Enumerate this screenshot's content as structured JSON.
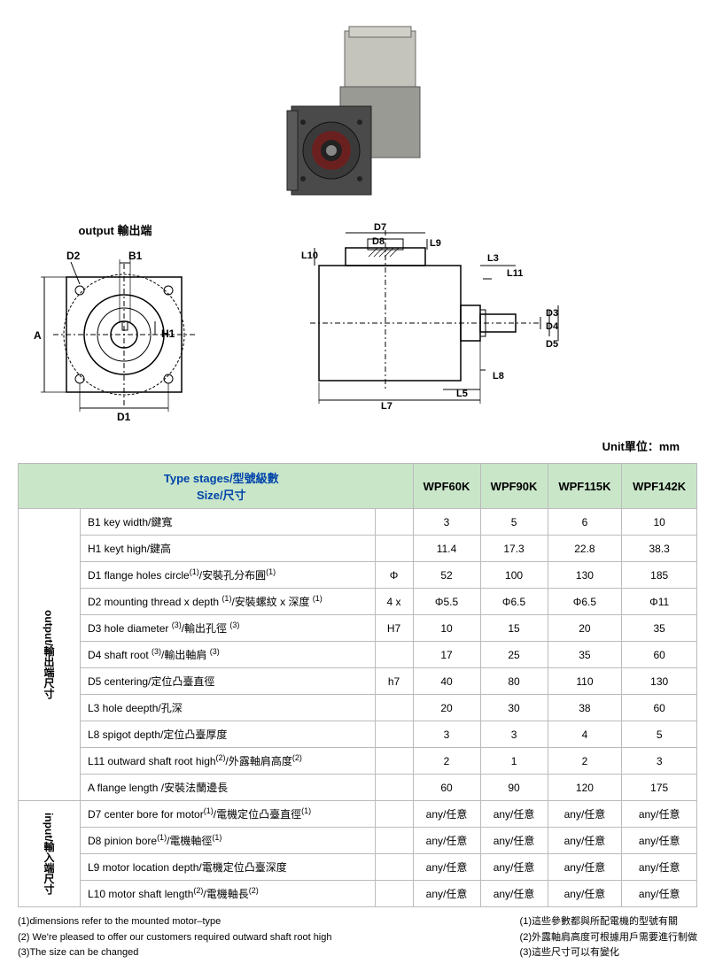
{
  "unit_label": "Unit單位：mm",
  "output_title": "output 輸出端",
  "header": {
    "size_label": "Size/尺寸",
    "type_stages": "Type stages/型號級數",
    "models": [
      "WPF60K",
      "WPF90K",
      "WPF115K",
      "WPF142K"
    ]
  },
  "sections": [
    {
      "vert_label": "output/輸出端尺寸",
      "rows": [
        {
          "label": "B1  key width/鍵寬",
          "tol": "",
          "vals": [
            "3",
            "5",
            "6",
            "10"
          ]
        },
        {
          "label": "H1 keyt high/鍵高",
          "tol": "",
          "vals": [
            "11.4",
            "17.3",
            "22.8",
            "38.3"
          ]
        },
        {
          "label": "D1  flange holes circle<sup>(1)</sup>/安裝孔分布圓<sup>(1)</sup>",
          "tol": "Φ",
          "vals": [
            "52",
            "100",
            "130",
            "185"
          ]
        },
        {
          "label": "D2  mounting thread x depth <sup>(1)</sup>/安裝螺紋 x 深度 <sup>(1)</sup>",
          "tol": "4 x",
          "vals": [
            "Φ5.5",
            "Φ6.5",
            "Φ6.5",
            "Φ11"
          ]
        },
        {
          "label": "D3  hole diameter <sup>(3)</sup>/輸出孔徑 <sup>(3)</sup>",
          "tol": "H7",
          "vals": [
            "10",
            "15",
            "20",
            "35"
          ]
        },
        {
          "label": "D4  shaft root <sup>(3)</sup>/輸出軸肩 <sup>(3)</sup>",
          "tol": "",
          "vals": [
            "17",
            "25",
            "35",
            "60"
          ]
        },
        {
          "label": "D5  centering/定位凸臺直徑",
          "tol": "h7",
          "vals": [
            "40",
            "80",
            "110",
            "130"
          ]
        },
        {
          "label": "L3 hole deepth/孔深",
          "tol": "",
          "vals": [
            "20",
            "30",
            "38",
            "60"
          ]
        },
        {
          "label": "L8   spigot depth/定位凸臺厚度",
          "tol": "",
          "vals": [
            "3",
            "3",
            "4",
            "5"
          ]
        },
        {
          "label": "L11 outward shaft root high<sup>(2)</sup>/外露軸肩高度<sup>(2)</sup>",
          "tol": "",
          "vals": [
            "2",
            "1",
            "2",
            "3"
          ]
        },
        {
          "label": "A   flange length /安裝法蘭邊長",
          "tol": "",
          "vals": [
            "60",
            "90",
            "120",
            "175"
          ]
        }
      ]
    },
    {
      "vert_label": "input/輸入端尺寸",
      "rows": [
        {
          "label": "D7   center bore for motor<sup>(1)</sup>/電機定位凸臺直徑<sup>(1)</sup>",
          "tol": "",
          "vals": [
            "any/任意",
            "any/任意",
            "any/任意",
            "any/任意"
          ]
        },
        {
          "label": "D8   pinion bore<sup>(1)</sup>/電機軸徑<sup>(1)</sup>",
          "tol": "",
          "vals": [
            "any/任意",
            "any/任意",
            "any/任意",
            "any/任意"
          ]
        },
        {
          "label": "L9    motor location depth/電機定位凸臺深度",
          "tol": "",
          "vals": [
            "any/任意",
            "any/任意",
            "any/任意",
            "any/任意"
          ]
        },
        {
          "label": "L10  motor shaft length<sup>(2)</sup>/電機軸長<sup>(2)</sup>",
          "tol": "",
          "vals": [
            "any/任意",
            "any/任意",
            "any/任意",
            "any/任意"
          ]
        }
      ]
    }
  ],
  "footnotes": {
    "left": [
      "(1)dimensions refer to the mounted motor–type",
      "(2)  We're pleased to offer our customers required outward shaft root high",
      "(3)The size can be changed"
    ],
    "right": [
      "(1)這些參數都與所配電機的型號有關",
      "(2)外露軸肩高度可根據用戶需要進行制做",
      "(3)這些尺寸可以有變化"
    ]
  },
  "diagram_labels": {
    "front": [
      "D2",
      "B1",
      "A",
      "H1",
      "D1"
    ],
    "side": [
      "D7",
      "D8",
      "L9",
      "L10",
      "L3",
      "L11",
      "D3",
      "D4",
      "D5",
      "L8",
      "L5",
      "L7"
    ]
  },
  "colors": {
    "header_bg": "#c9e6c9",
    "header_text": "#0044aa",
    "border": "#bbbbbb",
    "gearbox_steel": "#b8b8b0",
    "gearbox_dark": "#6a6a6a"
  }
}
